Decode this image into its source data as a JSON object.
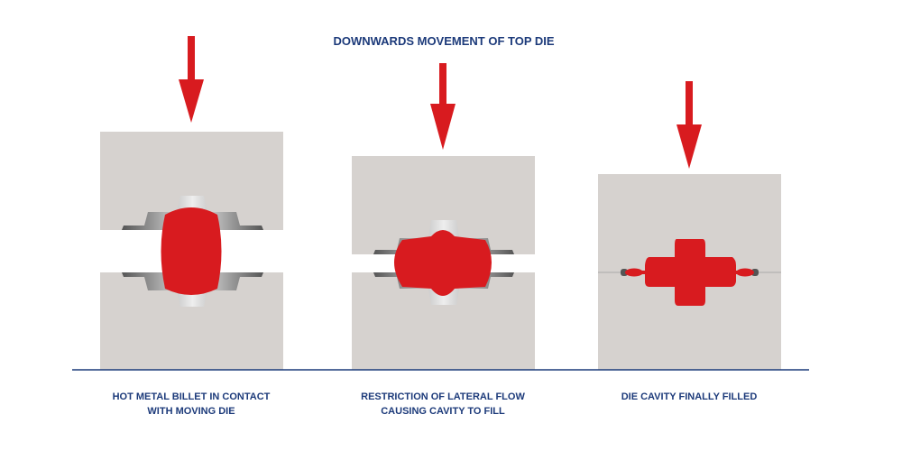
{
  "title": "DOWNWARDS MOVEMENT OF TOP DIE",
  "stages": [
    {
      "caption_line1": "HOT METAL BILLET IN CONTACT",
      "caption_line2": "WITH MOVING DIE"
    },
    {
      "caption_line1": "RESTRICTION OF LATERAL FLOW",
      "caption_line2": "CAUSING CAVITY TO FILL"
    },
    {
      "caption_line1": "DIE CAVITY FINALLY FILLED",
      "caption_line2": ""
    }
  ],
  "colors": {
    "die": "#d6d2cf",
    "metal": "#d81b1f",
    "text": "#1c3a7a",
    "arrow": "#d81b1f",
    "cavity": "#8a8a8a"
  }
}
